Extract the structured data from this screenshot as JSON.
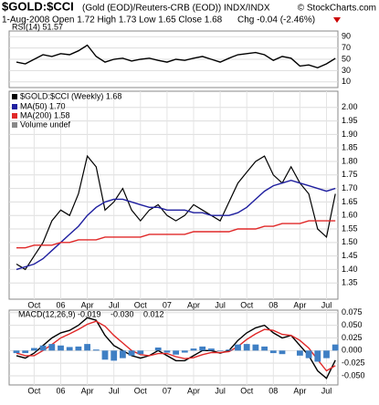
{
  "header": {
    "symbol": "$GOLD:$CCI",
    "description": "(Gold (EOD)/Reuters-CRB (EOD))  INDX/INDX",
    "source": "© StockCharts.com",
    "date": "1-Aug-2008",
    "ohlc": "Open 1.72 High 1.73 Low 1.65 Close 1.68",
    "change": "Chg -0.04 (-2.46%)"
  },
  "chart_data": [
    {
      "type": "line",
      "title": "RSI(14) 51.57",
      "ylim": [
        0,
        100
      ],
      "yticks": [
        90,
        70,
        50,
        30,
        10
      ],
      "grid": true,
      "series": [
        {
          "name": "RSI(14)",
          "color": "#000000",
          "values": [
            45,
            42,
            50,
            58,
            55,
            60,
            58,
            65,
            75,
            55,
            45,
            50,
            52,
            47,
            50,
            52,
            48,
            45,
            50,
            48,
            52,
            55,
            50,
            45,
            52,
            58,
            60,
            62,
            58,
            48,
            55,
            52,
            38,
            40,
            35,
            42,
            51.57
          ]
        }
      ]
    },
    {
      "type": "line",
      "title": "$GOLD:$CCI (Weekly) 1.68",
      "volume_label": "Volume undef",
      "ylim": [
        1.29,
        2.06
      ],
      "yticks": [
        {
          "value": 2.0,
          "label": "2.00"
        },
        {
          "value": 1.95,
          "label": "1.95"
        },
        {
          "value": 1.9,
          "label": "1.90"
        },
        {
          "value": 1.85,
          "label": "1.85"
        },
        {
          "value": 1.8,
          "label": "1.80"
        },
        {
          "value": 1.75,
          "label": "1.75"
        },
        {
          "value": 1.7,
          "label": "1.70"
        },
        {
          "value": 1.65,
          "label": "1.65"
        },
        {
          "value": 1.6,
          "label": "1.60"
        },
        {
          "value": 1.55,
          "label": "1.55"
        },
        {
          "value": 1.5,
          "label": "1.50"
        },
        {
          "value": 1.45,
          "label": "1.45"
        },
        {
          "value": 1.4,
          "label": "1.40"
        },
        {
          "value": 1.35,
          "label": "1.35"
        }
      ],
      "grid": true,
      "categories": [
        null,
        null,
        "Oct",
        null,
        null,
        "06",
        null,
        null,
        "Apr",
        null,
        null,
        "Jul",
        null,
        null,
        "Oct",
        null,
        null,
        "07",
        null,
        null,
        "Apr",
        null,
        null,
        "Jul",
        null,
        null,
        "Oct",
        null,
        null,
        "08",
        null,
        null,
        "Apr",
        null,
        null,
        "Jul",
        null
      ],
      "series": [
        {
          "name": "$GOLD:$CCI",
          "color": "#000000",
          "values": [
            1.42,
            1.4,
            1.45,
            1.5,
            1.58,
            1.62,
            1.6,
            1.68,
            1.82,
            1.78,
            1.62,
            1.65,
            1.7,
            1.62,
            1.58,
            1.62,
            1.64,
            1.6,
            1.58,
            1.6,
            1.64,
            1.62,
            1.6,
            1.58,
            1.65,
            1.72,
            1.76,
            1.8,
            1.82,
            1.75,
            1.72,
            1.78,
            1.72,
            1.68,
            1.55,
            1.52,
            1.68
          ]
        },
        {
          "name": "MA(50) 1.70",
          "color": "#1f1f9f",
          "values": [
            1.4,
            1.41,
            1.42,
            1.44,
            1.47,
            1.5,
            1.53,
            1.56,
            1.6,
            1.63,
            1.65,
            1.66,
            1.66,
            1.65,
            1.64,
            1.63,
            1.63,
            1.62,
            1.62,
            1.62,
            1.61,
            1.61,
            1.6,
            1.6,
            1.6,
            1.61,
            1.63,
            1.66,
            1.69,
            1.71,
            1.72,
            1.73,
            1.72,
            1.71,
            1.7,
            1.69,
            1.7
          ]
        },
        {
          "name": "MA(200) 1.58",
          "color": "#e02828",
          "values": [
            1.48,
            1.48,
            1.49,
            1.49,
            1.49,
            1.5,
            1.5,
            1.51,
            1.51,
            1.51,
            1.52,
            1.52,
            1.52,
            1.52,
            1.52,
            1.53,
            1.53,
            1.53,
            1.53,
            1.53,
            1.54,
            1.54,
            1.54,
            1.54,
            1.54,
            1.55,
            1.55,
            1.55,
            1.56,
            1.56,
            1.57,
            1.57,
            1.57,
            1.58,
            1.58,
            1.58,
            1.58
          ]
        }
      ]
    },
    {
      "type": "line",
      "title": "MACD(12,26,9)",
      "ylim": [
        -0.068,
        0.08
      ],
      "yticks": [
        {
          "value": 0.075,
          "label": "0.075"
        },
        {
          "value": 0.05,
          "label": "0.050"
        },
        {
          "value": 0.025,
          "label": "0.025"
        },
        {
          "value": 0,
          "label": "0.000"
        },
        {
          "value": -0.025,
          "label": "-0.025"
        },
        {
          "value": -0.05,
          "label": "-0.050"
        }
      ],
      "grid": true,
      "categories": [
        null,
        null,
        "Oct",
        null,
        null,
        "06",
        null,
        null,
        "Apr",
        null,
        null,
        "Jul",
        null,
        null,
        "Oct",
        null,
        null,
        "07",
        null,
        null,
        "Apr",
        null,
        null,
        "Jul",
        null,
        null,
        "Oct",
        null,
        null,
        "08",
        null,
        null,
        "Apr",
        null,
        null,
        "Jul",
        null
      ],
      "series": [
        {
          "name": "-0.019",
          "color": "#000000",
          "values": [
            -0.01,
            -0.015,
            -0.005,
            0.01,
            0.025,
            0.035,
            0.04,
            0.05,
            0.065,
            0.06,
            0.03,
            0.01,
            0.0,
            -0.01,
            -0.015,
            -0.01,
            0.0,
            -0.01,
            -0.02,
            -0.02,
            -0.01,
            0.0,
            0.0,
            -0.005,
            0.0,
            0.02,
            0.035,
            0.045,
            0.05,
            0.035,
            0.025,
            0.03,
            0.01,
            -0.01,
            -0.04,
            -0.055,
            -0.019
          ]
        },
        {
          "name": "-0.030",
          "color": "#e02828",
          "values": [
            -0.005,
            -0.01,
            -0.01,
            0.0,
            0.012,
            0.025,
            0.033,
            0.042,
            0.052,
            0.058,
            0.048,
            0.03,
            0.015,
            0.0,
            -0.008,
            -0.01,
            -0.006,
            -0.006,
            -0.012,
            -0.016,
            -0.014,
            -0.008,
            -0.004,
            -0.004,
            -0.002,
            0.008,
            0.022,
            0.033,
            0.042,
            0.04,
            0.032,
            0.03,
            0.02,
            0.005,
            -0.018,
            -0.04,
            -0.03
          ]
        },
        {
          "name": "0.012",
          "color": "#3f7fc4",
          "type": "bar",
          "values": [
            -0.005,
            -0.005,
            0.005,
            0.01,
            0.013,
            0.01,
            0.007,
            0.008,
            0.013,
            0.002,
            -0.018,
            -0.02,
            -0.015,
            -0.01,
            -0.007,
            0,
            0.006,
            -0.004,
            -0.008,
            -0.004,
            0.004,
            0.008,
            0.004,
            -0.001,
            0.002,
            0.012,
            0.013,
            0.012,
            0.008,
            -0.005,
            -0.007,
            0,
            -0.01,
            -0.015,
            -0.022,
            -0.015,
            0.012
          ]
        }
      ]
    }
  ]
}
